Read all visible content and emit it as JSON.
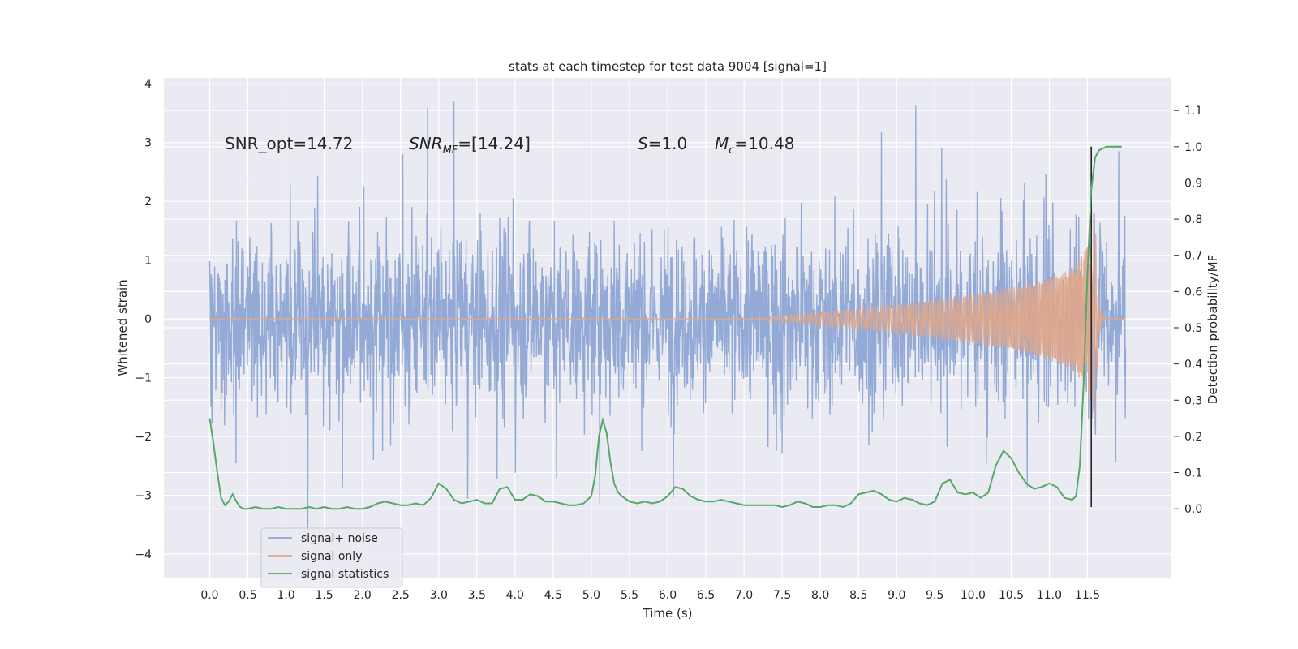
{
  "chart_data": {
    "type": "line",
    "title": "stats at each timestep for test data 9004 [signal=1]",
    "xlabel": "Time (s)",
    "ylabel": "Whitened strain",
    "y2label": "Detection probability/MF",
    "xlim": [
      -0.6,
      12.6
    ],
    "ylim": [
      -4.4,
      4.1
    ],
    "y2lim": [
      -0.19,
      1.19
    ],
    "x_ticks": [
      0.0,
      0.5,
      1.0,
      1.5,
      2.0,
      2.5,
      3.0,
      3.5,
      4.0,
      4.5,
      5.0,
      5.5,
      6.0,
      6.5,
      7.0,
      7.5,
      8.0,
      8.5,
      9.0,
      9.5,
      10.0,
      10.5,
      11.0,
      11.5
    ],
    "x_tick_labels": [
      "0.0",
      "0.5",
      "1.0",
      "1.5",
      "2.0",
      "2.5",
      "3.0",
      "3.5",
      "4.0",
      "4.5",
      "5.0",
      "5.5",
      "6.0",
      "6.5",
      "7.0",
      "7.5",
      "8.0",
      "8.5",
      "9.0",
      "9.5",
      "10.0",
      "10.5",
      "11.0",
      "11.5"
    ],
    "y_ticks": [
      4,
      3,
      2,
      1,
      0,
      -1,
      -2,
      -3,
      -4
    ],
    "y_tick_labels": [
      "4",
      "3",
      "2",
      "1",
      "0",
      "−1",
      "−2",
      "−3",
      "−4"
    ],
    "y2_ticks": [
      1.1,
      1.0,
      0.9,
      0.8,
      0.7,
      0.6,
      0.5,
      0.4,
      0.3,
      0.2,
      0.1,
      0.0
    ],
    "y2_tick_labels": [
      "1.1",
      "1.0",
      "0.9",
      "0.8",
      "0.7",
      "0.6",
      "0.5",
      "0.4",
      "0.3",
      "0.2",
      "0.1",
      "0.0"
    ],
    "grid": true,
    "legend_position": "lower-left",
    "annotations": {
      "snr_opt": "SNR_opt=14.72",
      "snr_mf_a": "SNR",
      "snr_mf_sub": "MF",
      "snr_mf_b": "=[14.24]",
      "s_a": "S",
      "s_b": "=1.0",
      "mc_a": "M",
      "mc_sub": "c",
      "mc_b": "=10.48"
    },
    "colors": {
      "noise": "#8fa6d4",
      "signal": "#e0a68a",
      "stats": "#55a868",
      "background": "#eaeaf2",
      "grid": "#ffffff",
      "marker": "#262626"
    },
    "series": [
      {
        "name": "signal+ noise",
        "axis": "left",
        "summary": "whitened noise fluctuating about 0 for 0.0 to 12.0 s, dense envelope about ±1.6 with spikes up to 3.7 and down to −4.1"
      },
      {
        "name": "signal only",
        "axis": "left",
        "chirp": {
          "t_start": 7.0,
          "t_merger": 11.6,
          "t_end": 12.0,
          "peak_amplitude": 1.9
        }
      },
      {
        "name": "signal statistics",
        "axis": "right",
        "x": [
          0.0,
          0.05,
          0.1,
          0.15,
          0.2,
          0.25,
          0.3,
          0.35,
          0.4,
          0.45,
          0.5,
          0.6,
          0.7,
          0.8,
          0.9,
          1.0,
          1.1,
          1.2,
          1.3,
          1.4,
          1.5,
          1.6,
          1.7,
          1.8,
          1.9,
          2.0,
          2.1,
          2.2,
          2.3,
          2.4,
          2.5,
          2.6,
          2.7,
          2.8,
          2.9,
          3.0,
          3.1,
          3.2,
          3.3,
          3.4,
          3.5,
          3.6,
          3.7,
          3.8,
          3.9,
          4.0,
          4.1,
          4.2,
          4.3,
          4.4,
          4.5,
          4.6,
          4.7,
          4.8,
          4.9,
          5.0,
          5.05,
          5.1,
          5.15,
          5.2,
          5.25,
          5.3,
          5.35,
          5.4,
          5.5,
          5.6,
          5.7,
          5.8,
          5.9,
          6.0,
          6.1,
          6.2,
          6.3,
          6.4,
          6.5,
          6.6,
          6.7,
          6.8,
          6.9,
          7.0,
          7.1,
          7.2,
          7.3,
          7.4,
          7.5,
          7.6,
          7.7,
          7.8,
          7.9,
          8.0,
          8.1,
          8.2,
          8.3,
          8.4,
          8.5,
          8.6,
          8.7,
          8.8,
          8.9,
          9.0,
          9.1,
          9.2,
          9.3,
          9.4,
          9.5,
          9.6,
          9.7,
          9.8,
          9.9,
          10.0,
          10.1,
          10.2,
          10.3,
          10.4,
          10.5,
          10.6,
          10.7,
          10.8,
          10.9,
          11.0,
          11.1,
          11.2,
          11.3,
          11.35,
          11.4,
          11.45,
          11.5,
          11.55,
          11.6,
          11.65,
          11.7,
          11.75,
          11.8,
          11.9,
          11.95
        ],
        "values": [
          0.25,
          0.18,
          0.1,
          0.03,
          0.01,
          0.02,
          0.04,
          0.02,
          0.005,
          0.0,
          0.0,
          0.005,
          0.0,
          0.0,
          0.005,
          0.0,
          0.0,
          0.0,
          0.005,
          0.0,
          0.005,
          0.0,
          0.0,
          0.005,
          0.0,
          0.0,
          0.005,
          0.015,
          0.02,
          0.015,
          0.01,
          0.01,
          0.015,
          0.01,
          0.03,
          0.07,
          0.055,
          0.025,
          0.015,
          0.02,
          0.025,
          0.015,
          0.015,
          0.055,
          0.06,
          0.025,
          0.025,
          0.04,
          0.035,
          0.02,
          0.02,
          0.015,
          0.01,
          0.01,
          0.015,
          0.035,
          0.09,
          0.2,
          0.245,
          0.21,
          0.13,
          0.07,
          0.045,
          0.035,
          0.02,
          0.015,
          0.02,
          0.015,
          0.02,
          0.035,
          0.06,
          0.055,
          0.035,
          0.025,
          0.02,
          0.02,
          0.025,
          0.02,
          0.015,
          0.01,
          0.01,
          0.01,
          0.01,
          0.01,
          0.005,
          0.01,
          0.02,
          0.015,
          0.005,
          0.005,
          0.01,
          0.01,
          0.005,
          0.015,
          0.04,
          0.045,
          0.05,
          0.04,
          0.025,
          0.02,
          0.03,
          0.025,
          0.015,
          0.01,
          0.02,
          0.07,
          0.08,
          0.045,
          0.04,
          0.045,
          0.03,
          0.045,
          0.12,
          0.16,
          0.14,
          0.1,
          0.07,
          0.055,
          0.06,
          0.07,
          0.06,
          0.03,
          0.025,
          0.035,
          0.12,
          0.35,
          0.65,
          0.88,
          0.97,
          0.99,
          0.995,
          1.0,
          1.0,
          1.0,
          1.0
        ]
      }
    ],
    "merger_marker_x": 11.55
  }
}
